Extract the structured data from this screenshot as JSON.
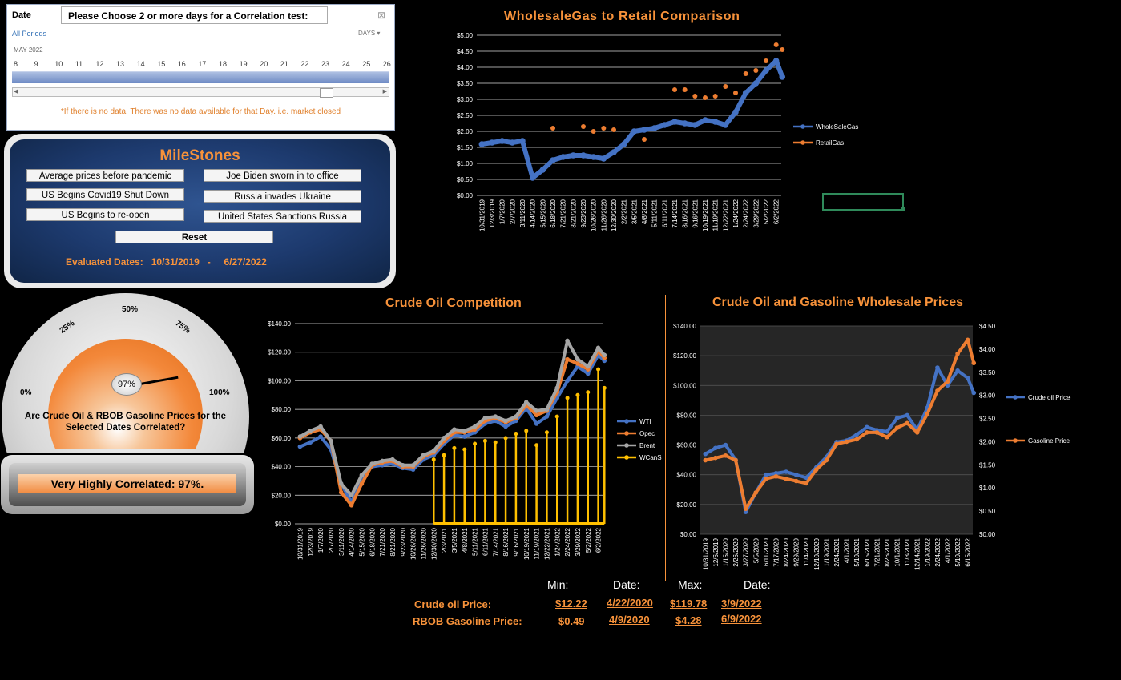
{
  "slicer": {
    "field_label": "Date",
    "title": "Please Choose 2 or more days for a Correlation test:",
    "all_periods": "All Periods",
    "unit": "DAYS",
    "month": "MAY 2022",
    "days": [
      "8",
      "9",
      "10",
      "11",
      "12",
      "13",
      "14",
      "15",
      "16",
      "17",
      "18",
      "19",
      "20",
      "21",
      "22",
      "23",
      "24",
      "25",
      "26"
    ],
    "note": "*If there is no data, There was no data available for that Day. i.e. market closed"
  },
  "milestones": {
    "title": "MileStones",
    "buttons": [
      "Average prices before pandemic",
      "US  Begins Covid19 Shut Down",
      "US Begins to re-open",
      "Joe Biden sworn in to office",
      "Russia invades Ukraine",
      "United States Sanctions Russia"
    ],
    "reset": "Reset",
    "evaluated_label": "Evaluated Dates:",
    "start_date": "10/31/2019",
    "dash": "-",
    "end_date": "6/27/2022"
  },
  "gauge": {
    "value_label": "97%",
    "value": 0.97,
    "ticks": [
      "0%",
      "25%",
      "50%",
      "75%",
      "100%"
    ],
    "question": "Are Crude Oil & RBOB Gasoline Prices for the Selected Dates Correlated?"
  },
  "result": {
    "text": "Very Highly Correlated: 97%."
  },
  "colors": {
    "wti": "#4472c4",
    "opec": "#ed7d31",
    "brent": "#a5a5a5",
    "wcans": "#ffc000",
    "accent": "#f7923a"
  },
  "chart_data": [
    {
      "type": "line",
      "title": "WholesaleGas to Retail Comparison",
      "yticks": [
        "$0.00",
        "$0.50",
        "$1.00",
        "$1.50",
        "$2.00",
        "$2.50",
        "$3.00",
        "$3.50",
        "$4.00",
        "$4.50",
        "$5.00"
      ],
      "ylim": [
        0,
        5
      ],
      "x_ticks": [
        "10/31/2019",
        "12/3/2019",
        "1/7/2020",
        "2/7/2020",
        "3/11/2020",
        "4/14/2020",
        "5/15/2020",
        "6/18/2020",
        "7/21/2020",
        "8/21/2020",
        "9/23/2020",
        "10/26/2020",
        "11/26/2020",
        "12/30/2020",
        "2/2/2021",
        "3/5/2021",
        "4/8/2021",
        "5/11/2021",
        "6/11/2021",
        "7/14/2021",
        "8/16/2021",
        "9/16/2021",
        "10/19/2021",
        "11/19/2021",
        "12/22/2021",
        "1/24/2022",
        "2/24/2022",
        "3/29/2022",
        "5/2/2022",
        "6/2/2022"
      ],
      "series": [
        {
          "name": "WholeSaleGas",
          "x": [
            0,
            1,
            2,
            3,
            4,
            5,
            6,
            7,
            8,
            9,
            10,
            11,
            12,
            13,
            14,
            15,
            16,
            17,
            18,
            19,
            20,
            21,
            22,
            23,
            24,
            25,
            26,
            27,
            28,
            29,
            29.6
          ],
          "values": [
            1.6,
            1.65,
            1.7,
            1.65,
            1.7,
            0.55,
            0.8,
            1.1,
            1.2,
            1.25,
            1.25,
            1.2,
            1.15,
            1.35,
            1.6,
            2.0,
            2.05,
            2.1,
            2.2,
            2.3,
            2.25,
            2.2,
            2.35,
            2.3,
            2.2,
            2.6,
            3.2,
            3.5,
            3.9,
            4.2,
            3.7
          ]
        },
        {
          "name": "RetailGas",
          "x": [
            7,
            10,
            11,
            12,
            13,
            16,
            19,
            20,
            21,
            22,
            23,
            24,
            25,
            26,
            27,
            28,
            29,
            29.6
          ],
          "values": [
            2.1,
            2.15,
            2.0,
            2.1,
            2.05,
            1.75,
            3.3,
            3.3,
            3.1,
            3.05,
            3.1,
            3.4,
            3.2,
            3.8,
            3.9,
            4.2,
            4.7,
            4.55
          ]
        }
      ]
    },
    {
      "type": "line",
      "title": "Crude Oil Competition",
      "yticks": [
        "$0.00",
        "$20.00",
        "$40.00",
        "$60.00",
        "$80.00",
        "$100.00",
        "$120.00",
        "$140.00"
      ],
      "ylim": [
        0,
        140
      ],
      "x_ticks": [
        "10/31/2019",
        "12/3/2019",
        "1/7/2020",
        "2/7/2020",
        "3/11/2020",
        "4/14/2020",
        "5/15/2020",
        "6/18/2020",
        "7/21/2020",
        "8/21/2020",
        "9/23/2020",
        "10/26/2020",
        "11/26/2020",
        "12/30/2020",
        "2/3/2021",
        "3/5/2021",
        "4/8/2021",
        "5/11/2021",
        "6/11/2021",
        "7/14/2021",
        "8/16/2021",
        "9/16/2021",
        "10/19/2021",
        "11/19/2021",
        "12/22/2021",
        "1/24/2022",
        "2/24/2022",
        "3/29/2022",
        "5/2/2022",
        "6/2/2022"
      ],
      "series": [
        {
          "name": "WTI",
          "x": [
            0,
            1,
            2,
            3,
            4,
            5,
            6,
            7,
            8,
            9,
            10,
            11,
            12,
            13,
            14,
            15,
            16,
            17,
            18,
            19,
            20,
            21,
            22,
            23,
            24,
            25,
            26,
            27,
            28,
            29,
            29.6
          ],
          "values": [
            54,
            57,
            61,
            52,
            28,
            15,
            33,
            40,
            41,
            42,
            39,
            38,
            45,
            48,
            56,
            62,
            61,
            64,
            70,
            72,
            68,
            72,
            81,
            70,
            75,
            88,
            100,
            110,
            105,
            118,
            114
          ]
        },
        {
          "name": "Opec",
          "x": [
            0,
            1,
            2,
            3,
            4,
            5,
            6,
            7,
            8,
            9,
            10,
            11,
            12,
            13,
            14,
            15,
            16,
            17,
            18,
            19,
            20,
            21,
            22,
            23,
            24,
            25,
            26,
            27,
            28,
            29,
            29.6
          ],
          "values": [
            60,
            64,
            66,
            58,
            22,
            13,
            28,
            41,
            43,
            44,
            40,
            40,
            47,
            50,
            58,
            64,
            64,
            66,
            72,
            74,
            71,
            74,
            83,
            76,
            79,
            92,
            115,
            112,
            108,
            121,
            116
          ]
        },
        {
          "name": "Brent",
          "x": [
            0,
            1,
            2,
            3,
            4,
            5,
            6,
            7,
            8,
            9,
            10,
            11,
            12,
            13,
            14,
            15,
            16,
            17,
            18,
            19,
            20,
            21,
            22,
            23,
            24,
            25,
            26,
            27,
            28,
            29,
            29.6
          ],
          "values": [
            61,
            65,
            68,
            58,
            28,
            20,
            34,
            42,
            44,
            45,
            41,
            41,
            48,
            51,
            60,
            66,
            65,
            68,
            74,
            75,
            72,
            75,
            85,
            79,
            80,
            95,
            128,
            115,
            110,
            123,
            118
          ]
        },
        {
          "name": "WCanS",
          "x": [
            13,
            14,
            15,
            16,
            17,
            18,
            19,
            20,
            21,
            22,
            23,
            24,
            25,
            26,
            27,
            28,
            29,
            29.6
          ],
          "values": [
            45,
            48,
            53,
            52,
            56,
            58,
            57,
            60,
            63,
            65,
            55,
            64,
            75,
            88,
            90,
            92,
            108,
            95
          ]
        }
      ]
    },
    {
      "type": "line",
      "title": "Crude Oil and Gasoline Wholesale Prices",
      "yticks_left": [
        "$0.00",
        "$20.00",
        "$40.00",
        "$60.00",
        "$80.00",
        "$100.00",
        "$120.00",
        "$140.00"
      ],
      "ylim_left": [
        0,
        140
      ],
      "yticks_right": [
        "$0.00",
        "$0.50",
        "$1.00",
        "$1.50",
        "$2.00",
        "$2.50",
        "$3.00",
        "$3.50",
        "$4.00",
        "$4.50"
      ],
      "ylim_right": [
        0,
        4.5
      ],
      "x_ticks": [
        "10/31/2019",
        "12/6/2019",
        "1/15/2020",
        "2/26/2020",
        "3/27/2020",
        "5/5/2020",
        "6/11/2020",
        "7/17/2020",
        "8/24/2020",
        "9/29/2020",
        "11/4/2020",
        "12/10/2020",
        "1/19/2021",
        "2/24/2021",
        "4/1/2021",
        "5/10/2021",
        "6/15/2021",
        "7/21/2021",
        "8/26/2021",
        "10/1/2021",
        "11/8/2021",
        "12/14/2021",
        "1/19/2022",
        "2/24/2022",
        "4/1/2022",
        "5/10/2022",
        "6/15/2022"
      ],
      "series": [
        {
          "name": "Crude oil Price",
          "x": [
            0,
            1,
            2,
            3,
            4,
            5,
            6,
            7,
            8,
            9,
            10,
            11,
            12,
            13,
            14,
            15,
            16,
            17,
            18,
            19,
            20,
            21,
            22,
            23,
            24,
            25,
            26,
            26.6
          ],
          "values": [
            54,
            58,
            60,
            50,
            15,
            28,
            40,
            41,
            42,
            40,
            38,
            45,
            52,
            62,
            63,
            67,
            72,
            70,
            69,
            78,
            80,
            70,
            85,
            112,
            100,
            110,
            105,
            95
          ]
        },
        {
          "name": "Gasoline Price",
          "x": [
            0,
            1,
            2,
            3,
            4,
            5,
            6,
            7,
            8,
            9,
            10,
            11,
            12,
            13,
            14,
            15,
            16,
            17,
            18,
            19,
            20,
            21,
            22,
            23,
            24,
            25,
            26,
            26.6
          ],
          "values": [
            1.6,
            1.65,
            1.7,
            1.6,
            0.55,
            0.9,
            1.2,
            1.25,
            1.2,
            1.15,
            1.1,
            1.4,
            1.6,
            1.95,
            2.0,
            2.05,
            2.2,
            2.2,
            2.1,
            2.3,
            2.4,
            2.2,
            2.6,
            3.1,
            3.3,
            3.9,
            4.2,
            3.7
          ]
        }
      ]
    }
  ],
  "stats": {
    "headers": {
      "min": "Min:",
      "date1": "Date:",
      "max": "Max:",
      "date2": "Date:"
    },
    "rows": [
      {
        "label": "Crude oil Price:",
        "min": "$12.22",
        "min_date": "4/22/2020",
        "max": "$119.78",
        "max_date": "3/9/2022"
      },
      {
        "label": "RBOB Gasoline Price:",
        "min": "$0.49",
        "min_date": "4/9/2020",
        "max": "$4.28",
        "max_date": "6/9/2022"
      }
    ]
  }
}
